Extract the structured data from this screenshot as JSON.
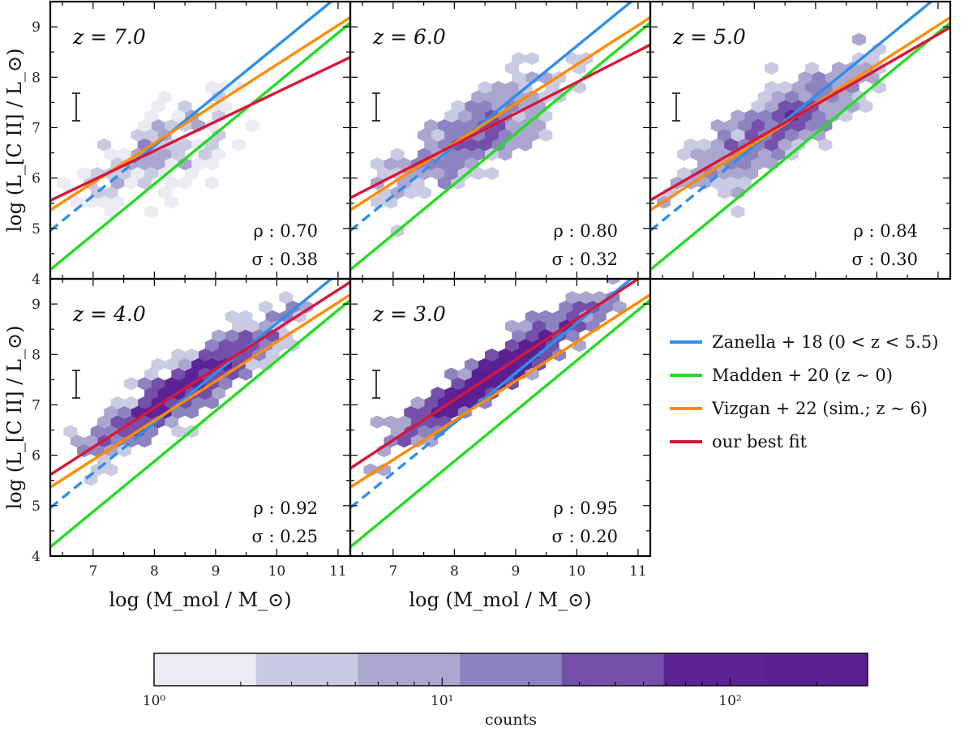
{
  "chart_data": {
    "type": "scatter",
    "x_range": [
      6.3,
      11.2
    ],
    "y_range": [
      4.0,
      9.5
    ],
    "x_ticks": [
      "7",
      "8",
      "9",
      "10",
      "11"
    ],
    "y_ticks": [
      "4",
      "5",
      "6",
      "7",
      "8",
      "9"
    ],
    "xlabel": "log (M_mol / M_⊙)",
    "ylabel": "log (L_[C II] / L_⊙)",
    "relations": [
      {
        "name": "Zanella + 18 (0 < z < 5.5)",
        "color": "#2f8fe8",
        "slope": 0.99,
        "intercept": -1.28,
        "solid_from_x": 7.7
      },
      {
        "name": "Madden + 20 (z ∼ 0)",
        "color": "#22dd22",
        "slope": 1.0,
        "intercept": -2.12
      },
      {
        "name": "Vizgan + 22 (sim.; z ∼ 6)",
        "color": "#ff8c00",
        "slope": 0.78,
        "intercept": 0.45
      },
      {
        "name": "our best fit",
        "color": "#d8163a",
        "slope_note": "per panel"
      }
    ],
    "panels": [
      {
        "z_label": "z = 7.0",
        "rho": "0.70",
        "sigma": "0.38",
        "fit_slope": 0.58,
        "fit_intercept": 1.9,
        "center": [
          8.0,
          6.5
        ],
        "spread": [
          1.1,
          0.45
        ],
        "peak": 14,
        "n": 160
      },
      {
        "z_label": "z = 6.0",
        "rho": "0.80",
        "sigma": "0.32",
        "fit_slope": 0.62,
        "fit_intercept": 1.7,
        "center": [
          8.3,
          6.9
        ],
        "spread": [
          1.2,
          0.42
        ],
        "peak": 40,
        "n": 320
      },
      {
        "z_label": "z = 5.0",
        "rho": "0.84",
        "sigma": "0.30",
        "fit_slope": 0.7,
        "fit_intercept": 1.15,
        "center": [
          8.4,
          7.0
        ],
        "spread": [
          1.3,
          0.38
        ],
        "peak": 60,
        "n": 480
      },
      {
        "z_label": "z = 4.0",
        "rho": "0.92",
        "sigma": "0.25",
        "fit_slope": 0.78,
        "fit_intercept": 0.7,
        "center": [
          8.5,
          7.3
        ],
        "spread": [
          1.3,
          0.3
        ],
        "peak": 110,
        "n": 620
      },
      {
        "z_label": "z = 3.0",
        "rho": "0.95",
        "sigma": "0.20",
        "fit_slope": 0.8,
        "fit_intercept": 0.7,
        "center": [
          8.6,
          7.6
        ],
        "spread": [
          1.3,
          0.22
        ],
        "peak": 260,
        "n": 700
      }
    ],
    "colorbar": {
      "label": "counts",
      "scale": "log",
      "range": [
        1,
        300
      ],
      "tick_labels": [
        "10⁰",
        "10¹",
        "10²"
      ],
      "colors": [
        "#ebebf3",
        "#cacae2",
        "#aaa6d0",
        "#8c83c0",
        "#7550aa",
        "#5d2295",
        "#5b1f92"
      ]
    }
  }
}
